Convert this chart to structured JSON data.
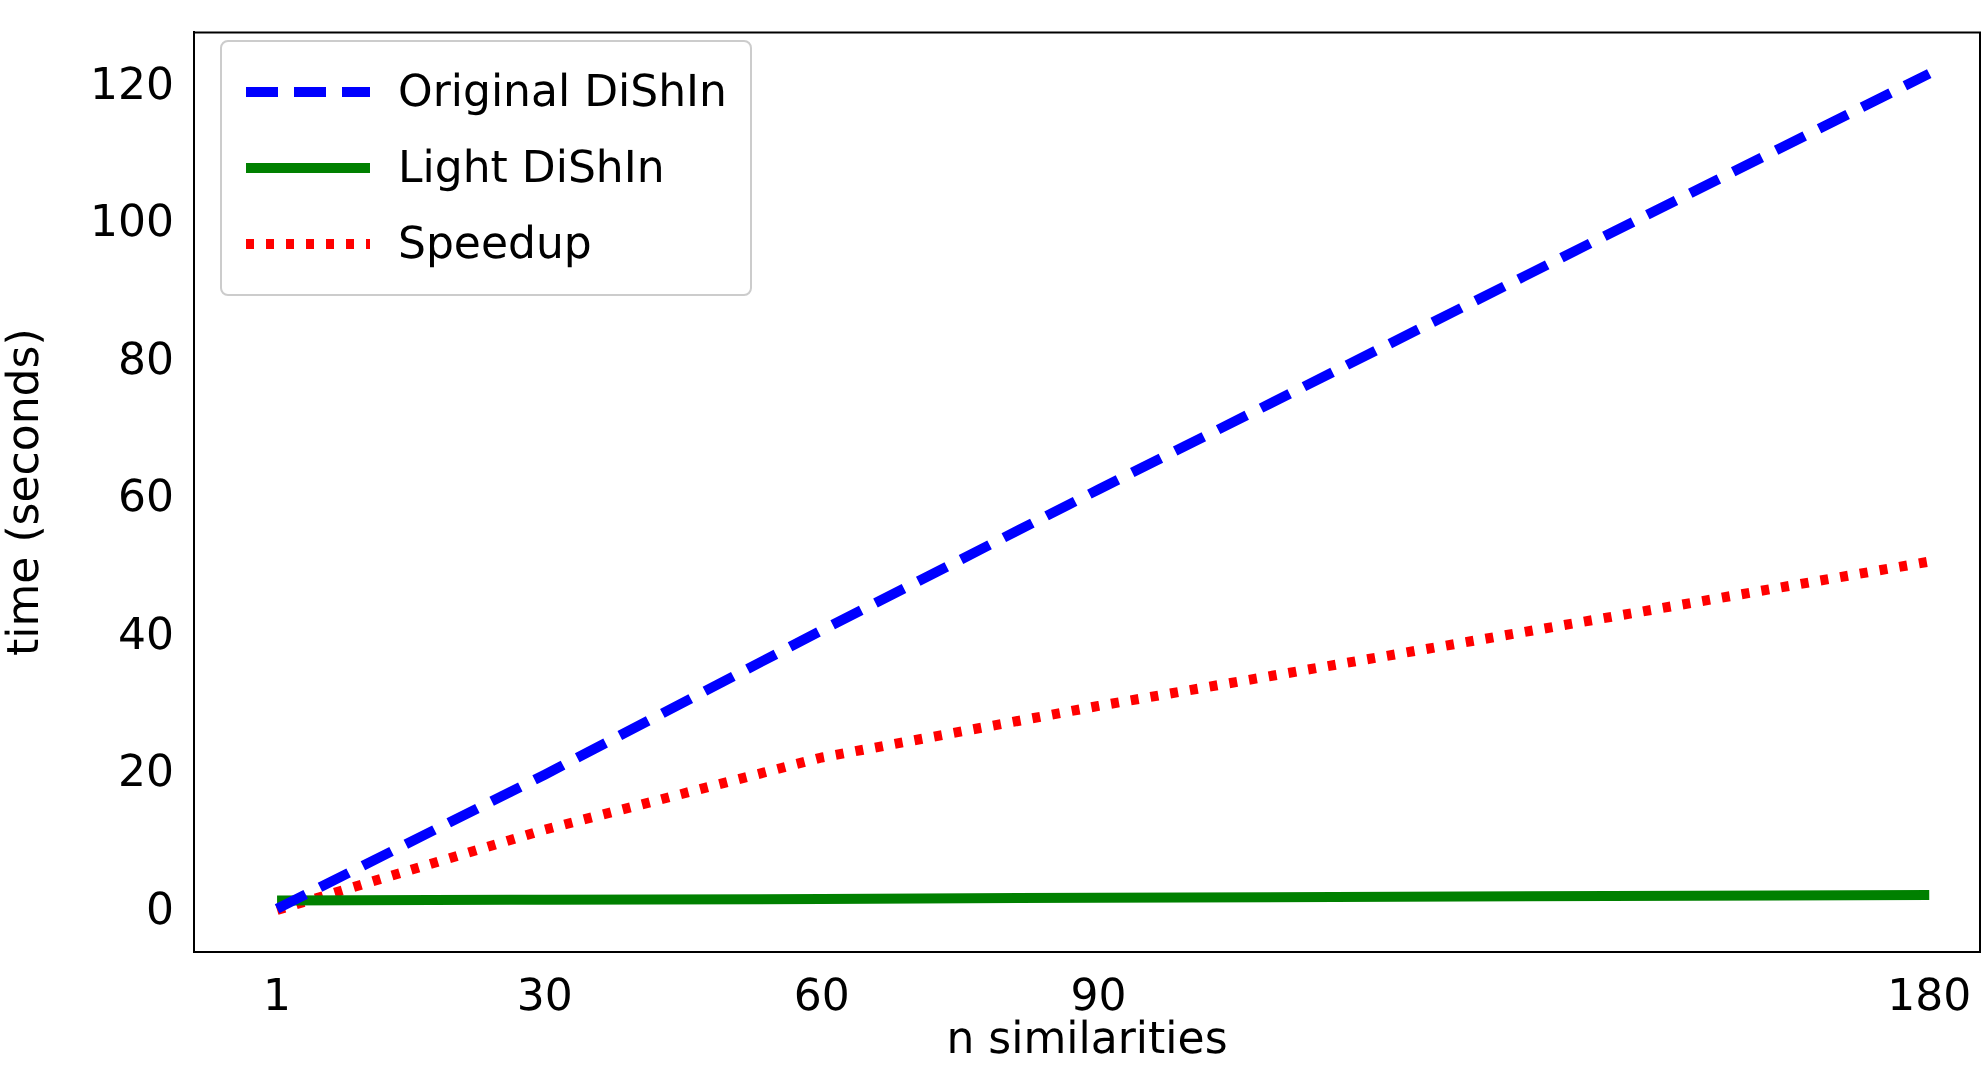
{
  "chart_data": {
    "type": "line",
    "xlabel": "n similarities",
    "ylabel": "time (seconds)",
    "x": [
      1,
      30,
      60,
      90,
      180
    ],
    "series": [
      {
        "name": "Original DiShIn",
        "color": "#0000ff",
        "line_style": "dashed",
        "values": [
          0.5,
          20,
          41,
          61.5,
          122
        ]
      },
      {
        "name": "Light DiShIn",
        "color": "#008000",
        "line_style": "solid",
        "values": [
          1.7,
          1.8,
          1.9,
          2.1,
          2.5
        ]
      },
      {
        "name": "Speedup",
        "color": "#ff0000",
        "line_style": "dotted",
        "values": [
          0.3,
          12,
          22.5,
          30,
          51
        ]
      }
    ],
    "xlim": [
      -8,
      185.5
    ],
    "xticks": [
      1,
      30,
      60,
      90,
      180
    ],
    "ylim": [
      -5.8,
      128
    ],
    "yticks": [
      0,
      20,
      40,
      60,
      80,
      100,
      120
    ],
    "grid": false,
    "legend": "top left",
    "marker": "none"
  }
}
